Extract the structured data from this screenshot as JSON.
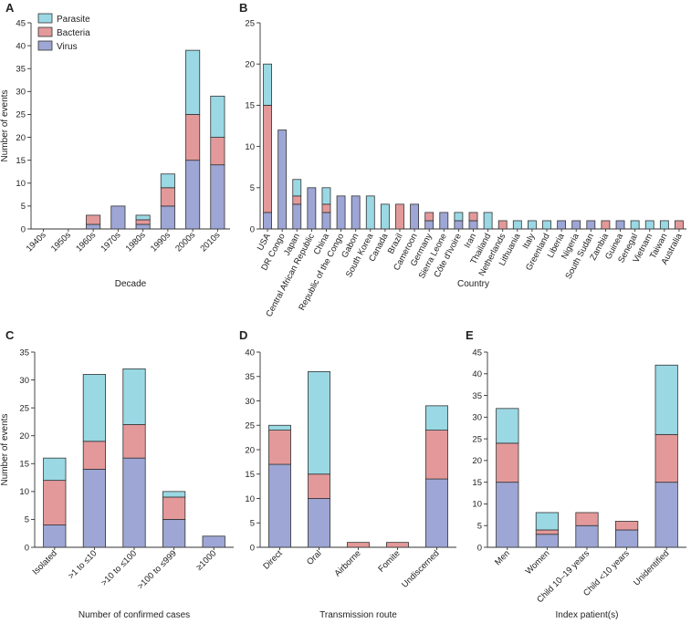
{
  "colors": {
    "Virus": "#9da6d4",
    "Bacteria": "#e3999a",
    "Parasite": "#9ad8e4"
  },
  "legend": {
    "entries": [
      "Parasite",
      "Bacteria",
      "Virus"
    ],
    "placement": "top-left of panel A"
  },
  "chart_data": [
    {
      "id": "A",
      "panel_letter": "A",
      "type": "bar",
      "stacked": true,
      "title": "",
      "xlabel": "Decade",
      "ylabel": "Number of events",
      "ylim": [
        0,
        45
      ],
      "yticks": [
        0,
        5,
        10,
        15,
        20,
        25,
        30,
        35,
        40,
        45
      ],
      "categories": [
        "1940s",
        "1950s",
        "1960s",
        "1970s",
        "1980s",
        "1990s",
        "2000s",
        "2010s"
      ],
      "series": [
        {
          "name": "Virus",
          "values": [
            0,
            0,
            1,
            5,
            1,
            5,
            15,
            14
          ]
        },
        {
          "name": "Bacteria",
          "values": [
            0,
            0,
            2,
            0,
            1,
            4,
            10,
            6
          ]
        },
        {
          "name": "Parasite",
          "values": [
            0,
            0,
            0,
            0,
            1,
            3,
            14,
            9
          ]
        }
      ]
    },
    {
      "id": "B",
      "panel_letter": "B",
      "type": "bar",
      "stacked": true,
      "title": "",
      "xlabel": "Country",
      "ylabel": "",
      "ylim": [
        0,
        25
      ],
      "yticks": [
        0,
        5,
        10,
        15,
        20,
        25
      ],
      "categories": [
        "USA",
        "DR Congo",
        "Japan",
        "Central African Republic",
        "China",
        "Republic of the Congo",
        "Gabon",
        "South Korea",
        "Canada",
        "Brazil",
        "Cameroon",
        "Germany",
        "Sierra Leone",
        "Côte d'Ivoire",
        "Iran",
        "Thailand",
        "Netherlands",
        "Lithuania",
        "Italy",
        "Greenland",
        "Liberia",
        "Nigeria",
        "South Sudan",
        "Zambia",
        "Guinea",
        "Senegal",
        "Vietnam",
        "Taiwan",
        "Australia"
      ],
      "series": [
        {
          "name": "Virus",
          "values": [
            2,
            12,
            3,
            5,
            2,
            4,
            4,
            0,
            0,
            0,
            3,
            1,
            2,
            1,
            1,
            0,
            0,
            0,
            0,
            0,
            1,
            1,
            1,
            0,
            1,
            0,
            0,
            0,
            0
          ]
        },
        {
          "name": "Bacteria",
          "values": [
            13,
            0,
            1,
            0,
            1,
            0,
            0,
            0,
            0,
            3,
            0,
            1,
            0,
            0,
            1,
            0,
            1,
            0,
            0,
            0,
            0,
            0,
            0,
            1,
            0,
            0,
            0,
            0,
            1
          ]
        },
        {
          "name": "Parasite",
          "values": [
            5,
            0,
            2,
            0,
            2,
            0,
            0,
            4,
            3,
            0,
            0,
            0,
            0,
            1,
            0,
            2,
            0,
            1,
            1,
            1,
            0,
            0,
            0,
            0,
            0,
            1,
            1,
            1,
            0
          ]
        }
      ]
    },
    {
      "id": "C",
      "panel_letter": "C",
      "type": "bar",
      "stacked": true,
      "title": "",
      "xlabel": "Number of confirmed cases",
      "ylabel": "Number of events",
      "ylim": [
        0,
        35
      ],
      "yticks": [
        0,
        5,
        10,
        15,
        20,
        25,
        30,
        35
      ],
      "categories": [
        "Isolated",
        ">1 to ≤10",
        ">10 to ≤100",
        ">100 to ≤999",
        "≥1000"
      ],
      "series": [
        {
          "name": "Virus",
          "values": [
            4,
            14,
            16,
            5,
            2
          ]
        },
        {
          "name": "Bacteria",
          "values": [
            8,
            5,
            6,
            4,
            0
          ]
        },
        {
          "name": "Parasite",
          "values": [
            4,
            12,
            10,
            1,
            0
          ]
        }
      ]
    },
    {
      "id": "D",
      "panel_letter": "D",
      "type": "bar",
      "stacked": true,
      "title": "",
      "xlabel": "Transmission route",
      "ylabel": "",
      "ylim": [
        0,
        40
      ],
      "yticks": [
        0,
        5,
        10,
        15,
        20,
        25,
        30,
        35,
        40
      ],
      "categories": [
        "Direct",
        "Oral",
        "Airborne",
        "Fomite",
        "Undiscerned"
      ],
      "series": [
        {
          "name": "Virus",
          "values": [
            17,
            10,
            0,
            0,
            14
          ]
        },
        {
          "name": "Bacteria",
          "values": [
            7,
            5,
            1,
            1,
            10
          ]
        },
        {
          "name": "Parasite",
          "values": [
            1,
            21,
            0,
            0,
            5
          ]
        }
      ]
    },
    {
      "id": "E",
      "panel_letter": "E",
      "type": "bar",
      "stacked": true,
      "title": "",
      "xlabel": "Index patient(s)",
      "ylabel": "",
      "ylim": [
        0,
        45
      ],
      "yticks": [
        0,
        5,
        10,
        15,
        20,
        25,
        30,
        35,
        40,
        45
      ],
      "categories": [
        "Men",
        "Women",
        "Child 10–19 years",
        "Child <10 years",
        "Unidentified"
      ],
      "series": [
        {
          "name": "Virus",
          "values": [
            15,
            3,
            5,
            4,
            15
          ]
        },
        {
          "name": "Bacteria",
          "values": [
            9,
            1,
            3,
            2,
            11
          ]
        },
        {
          "name": "Parasite",
          "values": [
            8,
            4,
            0,
            0,
            16
          ]
        }
      ]
    }
  ]
}
